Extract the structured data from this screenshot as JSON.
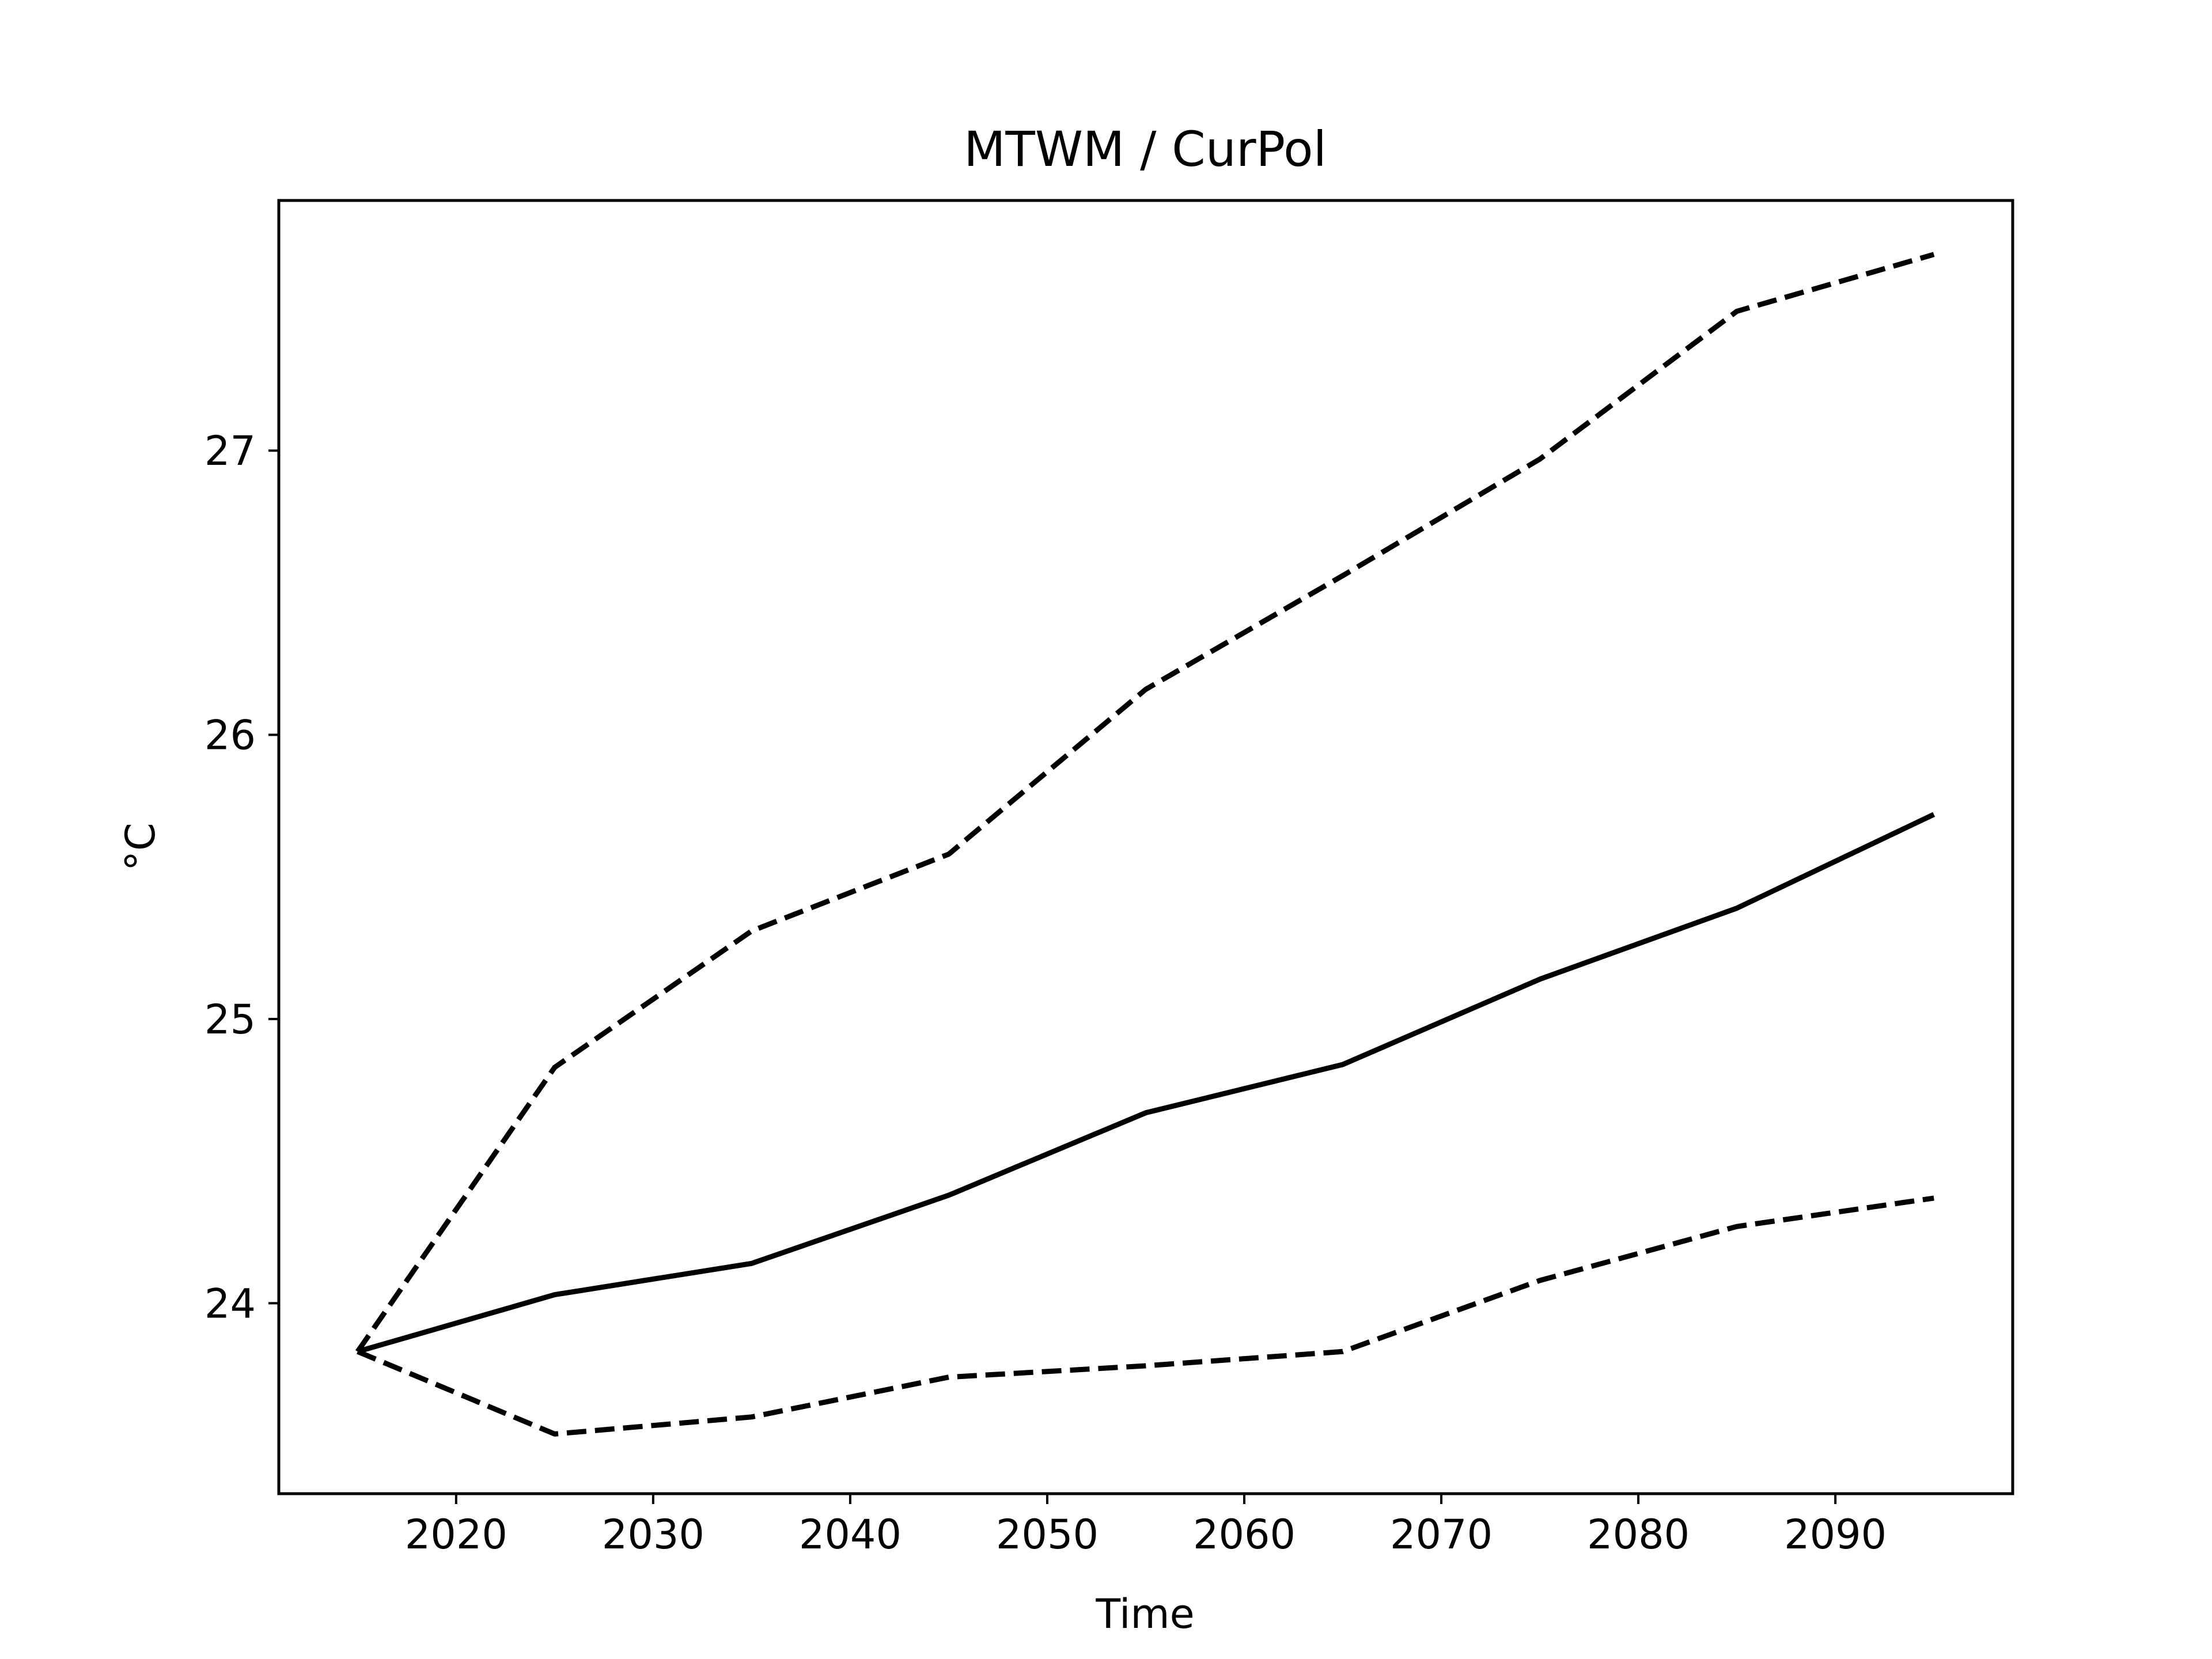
{
  "chart_data": {
    "type": "line",
    "title": "MTWM / CurPol",
    "xlabel": "Time",
    "ylabel": "°C",
    "xlim": [
      2011,
      2099
    ],
    "ylim": [
      23.33,
      27.88
    ],
    "x_ticks": [
      2020,
      2030,
      2040,
      2050,
      2060,
      2070,
      2080,
      2090
    ],
    "y_ticks": [
      24,
      25,
      26,
      27
    ],
    "grid": false,
    "legend": "none",
    "x": [
      2015,
      2025,
      2035,
      2045,
      2055,
      2065,
      2075,
      2085,
      2095
    ],
    "series": [
      {
        "style": "solid",
        "color": "#000000",
        "values": [
          23.83,
          24.03,
          24.14,
          24.38,
          24.67,
          24.84,
          25.14,
          25.39,
          25.72
        ]
      },
      {
        "style": "dashed",
        "color": "#000000",
        "values": [
          23.83,
          24.83,
          25.31,
          25.58,
          26.16,
          26.56,
          26.97,
          27.49,
          27.69
        ]
      },
      {
        "style": "dashed",
        "color": "#000000",
        "values": [
          23.83,
          23.54,
          23.6,
          23.74,
          23.78,
          23.83,
          24.08,
          24.27,
          24.37
        ]
      }
    ]
  }
}
